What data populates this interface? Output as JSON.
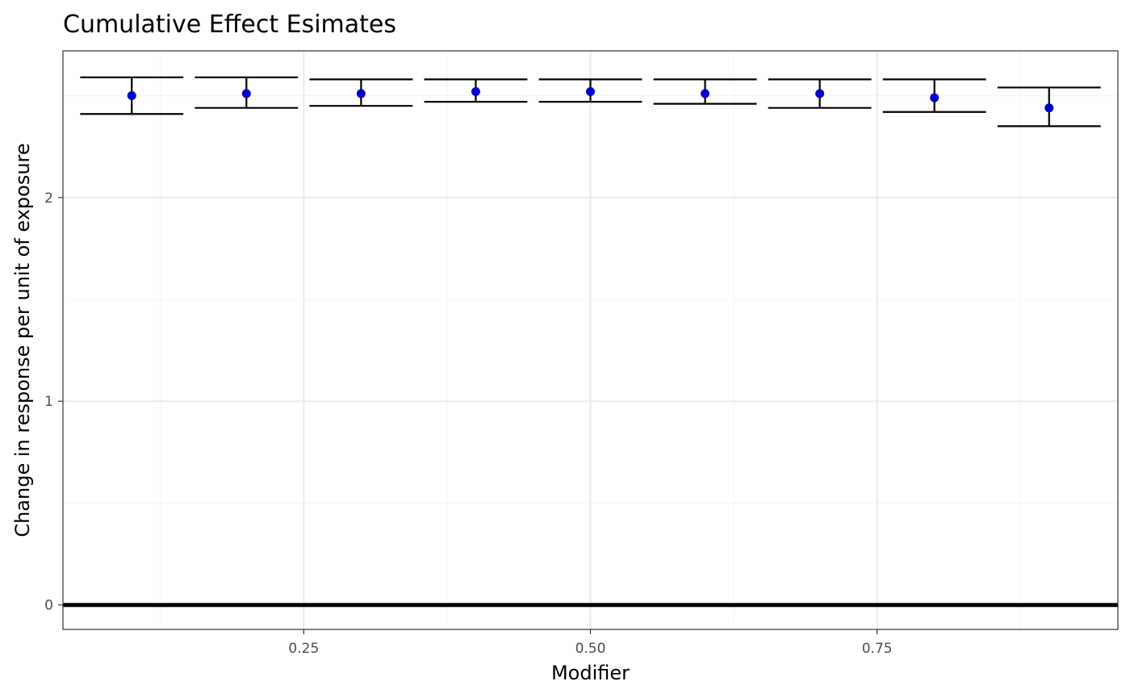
{
  "chart_data": {
    "type": "errorbar",
    "title": "Cumulative Effect Esimates",
    "xlabel": "Modifier",
    "ylabel": "Change in response per unit of exposure",
    "xlim": [
      0.04,
      0.96
    ],
    "ylim": [
      -0.12,
      2.72
    ],
    "x_ticks": [
      {
        "value": 0.25,
        "label": "0.25"
      },
      {
        "value": 0.5,
        "label": "0.50"
      },
      {
        "value": 0.75,
        "label": "0.75"
      }
    ],
    "y_ticks": [
      {
        "value": 0,
        "label": "0"
      },
      {
        "value": 1,
        "label": "1"
      },
      {
        "value": 2,
        "label": "2"
      }
    ],
    "x_minor_grid": [
      0.125,
      0.375,
      0.625,
      0.875
    ],
    "y_minor_grid": [
      0.5,
      1.5,
      2.5
    ],
    "grid": true,
    "reference_line_y": 0,
    "errorbar_width": 0.09,
    "colors": {
      "point": "#0000CD",
      "errorbar": "#000000",
      "reference_line": "#000000",
      "major_grid": "#EBEBEB",
      "minor_grid": "#F5F5F5"
    },
    "points": [
      {
        "x": 0.1,
        "y": 2.5,
        "lower": 2.41,
        "upper": 2.59
      },
      {
        "x": 0.2,
        "y": 2.51,
        "lower": 2.44,
        "upper": 2.59
      },
      {
        "x": 0.3,
        "y": 2.51,
        "lower": 2.45,
        "upper": 2.58
      },
      {
        "x": 0.4,
        "y": 2.52,
        "lower": 2.47,
        "upper": 2.58
      },
      {
        "x": 0.5,
        "y": 2.52,
        "lower": 2.47,
        "upper": 2.58
      },
      {
        "x": 0.6,
        "y": 2.51,
        "lower": 2.46,
        "upper": 2.58
      },
      {
        "x": 0.7,
        "y": 2.51,
        "lower": 2.44,
        "upper": 2.58
      },
      {
        "x": 0.8,
        "y": 2.49,
        "lower": 2.42,
        "upper": 2.58
      },
      {
        "x": 0.9,
        "y": 2.44,
        "lower": 2.35,
        "upper": 2.54
      }
    ]
  }
}
